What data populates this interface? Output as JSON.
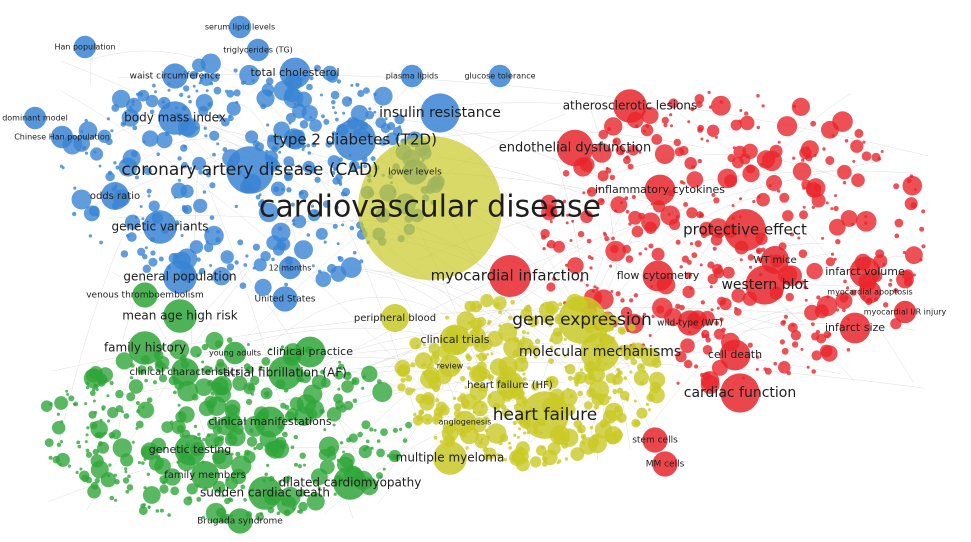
{
  "clusters": [
    {
      "nodes": [
        "coronary artery disease (CAD)",
        "type 2 diabetes (T2D)",
        "insulin resistance",
        "body mass index",
        "genetic variants",
        "odds ratio",
        "general population",
        "waist circumference",
        "total cholesterol",
        "triglycerides (TG)",
        "serum lipid levels",
        "plasma lipids",
        "glucose tolerance",
        "Han population",
        "dominant model",
        "Chinese Han population",
        "United States",
        "12 months",
        "lower levels"
      ]
    },
    {
      "nodes": [
        "endothelial dysfunction",
        "atherosclerotic lesions",
        "protective effect",
        "inflammatory cytokines",
        "western blot",
        "flow cytometry",
        "WT mice",
        "infarct volume",
        "infarct size",
        "cell death",
        "cardiac function",
        "stem cells",
        "MM cells",
        "wild-type (WT)",
        "myocardial apoptosis",
        "myocardial I/R injury",
        "myocardial infarction"
      ]
    },
    {
      "nodes": [
        "mean age high risk",
        "family history",
        "clinical characteristics",
        "atrial fibrillation (AF)",
        "clinical practice",
        "clinical manifestations",
        "genetic testing",
        "family members",
        "sudden cardiac death",
        "Brugada syndrome",
        "dilated cardiomyopathy",
        "venous thromboembolism",
        "young adults"
      ]
    },
    {
      "nodes": [
        "cardiovascular disease",
        "gene expression",
        "molecular mechanisms",
        "heart failure",
        "heart failure (HF)",
        "clinical trials",
        "peripheral blood",
        "multiple myeloma",
        "angiogenesis",
        "review"
      ]
    }
  ]
}
